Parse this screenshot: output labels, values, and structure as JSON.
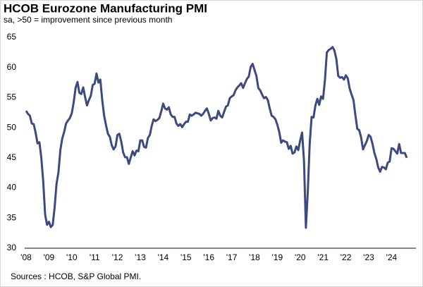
{
  "chart_data": {
    "type": "line",
    "title": "HCOB Eurozone Manufacturing PMI",
    "subtitle": "sa, >50 = improvement  since previous month",
    "source": "Sources : HCOB, S&P Global PMI.",
    "color": "#3d4a80",
    "grid": false,
    "ylim": [
      30,
      65
    ],
    "yticks": [
      30,
      35,
      40,
      45,
      50,
      55,
      60,
      65
    ],
    "categories": [
      "'08",
      null,
      null,
      null,
      null,
      null,
      null,
      null,
      null,
      null,
      null,
      null,
      "'09",
      null,
      null,
      null,
      null,
      null,
      null,
      null,
      null,
      null,
      null,
      null,
      "'10",
      null,
      null,
      null,
      null,
      null,
      null,
      null,
      null,
      null,
      null,
      null,
      "'11",
      null,
      null,
      null,
      null,
      null,
      null,
      null,
      null,
      null,
      null,
      null,
      "'12",
      null,
      null,
      null,
      null,
      null,
      null,
      null,
      null,
      null,
      null,
      null,
      "'13",
      null,
      null,
      null,
      null,
      null,
      null,
      null,
      null,
      null,
      null,
      null,
      "'14",
      null,
      null,
      null,
      null,
      null,
      null,
      null,
      null,
      null,
      null,
      null,
      "'15",
      null,
      null,
      null,
      null,
      null,
      null,
      null,
      null,
      null,
      null,
      null,
      "'16",
      null,
      null,
      null,
      null,
      null,
      null,
      null,
      null,
      null,
      null,
      null,
      "'17",
      null,
      null,
      null,
      null,
      null,
      null,
      null,
      null,
      null,
      null,
      null,
      "'18",
      null,
      null,
      null,
      null,
      null,
      null,
      null,
      null,
      null,
      null,
      null,
      "'19",
      null,
      null,
      null,
      null,
      null,
      null,
      null,
      null,
      null,
      null,
      null,
      "'20",
      null,
      null,
      null,
      null,
      null,
      null,
      null,
      null,
      null,
      null,
      null,
      "'21",
      null,
      null,
      null,
      null,
      null,
      null,
      null,
      null,
      null,
      null,
      null,
      "'22",
      null,
      null,
      null,
      null,
      null,
      null,
      null,
      null,
      null,
      null,
      null,
      "'23",
      null,
      null,
      null,
      null,
      null,
      null,
      null,
      null,
      null,
      null,
      null,
      "'24",
      null,
      null,
      null,
      null,
      null,
      null,
      null,
      null
    ],
    "values": [
      52.8,
      52.3,
      52.0,
      50.7,
      50.6,
      49.2,
      47.4,
      47.6,
      45.0,
      41.1,
      35.6,
      33.9,
      34.4,
      33.5,
      33.9,
      36.8,
      40.7,
      42.6,
      46.3,
      48.2,
      49.3,
      50.7,
      51.2,
      51.6,
      52.4,
      54.2,
      56.6,
      57.6,
      55.8,
      55.6,
      56.7,
      55.1,
      53.7,
      54.6,
      55.3,
      57.1,
      57.3,
      59.0,
      57.5,
      58.0,
      54.6,
      52.0,
      50.4,
      49.0,
      48.5,
      47.1,
      46.4,
      46.9,
      48.8,
      49.0,
      47.7,
      45.9,
      45.1,
      45.1,
      44.0,
      45.1,
      46.1,
      45.4,
      46.2,
      46.1,
      47.9,
      47.9,
      46.8,
      46.7,
      48.3,
      48.8,
      50.3,
      51.4,
      51.1,
      51.3,
      51.6,
      52.7,
      54.0,
      53.2,
      53.0,
      53.4,
      52.2,
      51.8,
      51.8,
      50.7,
      50.3,
      50.6,
      50.1,
      50.6,
      51.0,
      51.0,
      52.2,
      52.0,
      52.2,
      52.5,
      52.4,
      52.3,
      52.0,
      52.3,
      52.8,
      53.2,
      52.3,
      51.2,
      51.6,
      51.7,
      51.5,
      52.8,
      52.0,
      51.7,
      52.6,
      53.5,
      53.7,
      54.9,
      55.2,
      55.4,
      56.2,
      56.7,
      57.0,
      57.4,
      56.6,
      57.4,
      58.1,
      58.5,
      60.1,
      60.6,
      59.6,
      58.6,
      56.6,
      56.2,
      55.5,
      54.9,
      55.1,
      54.6,
      53.2,
      52.0,
      51.8,
      51.4,
      50.5,
      49.3,
      47.5,
      47.9,
      47.7,
      47.6,
      46.5,
      47.0,
      45.7,
      45.9,
      46.9,
      46.3,
      47.9,
      49.2,
      44.5,
      33.4,
      39.4,
      47.4,
      51.8,
      51.7,
      53.7,
      54.8,
      53.8,
      55.2,
      54.8,
      57.9,
      62.5,
      62.9,
      63.1,
      63.4,
      62.8,
      61.4,
      58.6,
      58.3,
      58.4,
      58.0,
      58.7,
      58.2,
      56.5,
      55.5,
      54.6,
      52.1,
      49.8,
      49.6,
      48.4,
      46.4,
      47.1,
      47.8,
      48.8,
      48.5,
      47.3,
      45.8,
      44.8,
      43.4,
      42.7,
      43.5,
      43.4,
      43.1,
      44.2,
      44.4,
      46.6,
      46.5,
      46.1,
      45.7,
      47.3,
      45.8,
      45.8,
      45.8,
      45.0
    ]
  }
}
